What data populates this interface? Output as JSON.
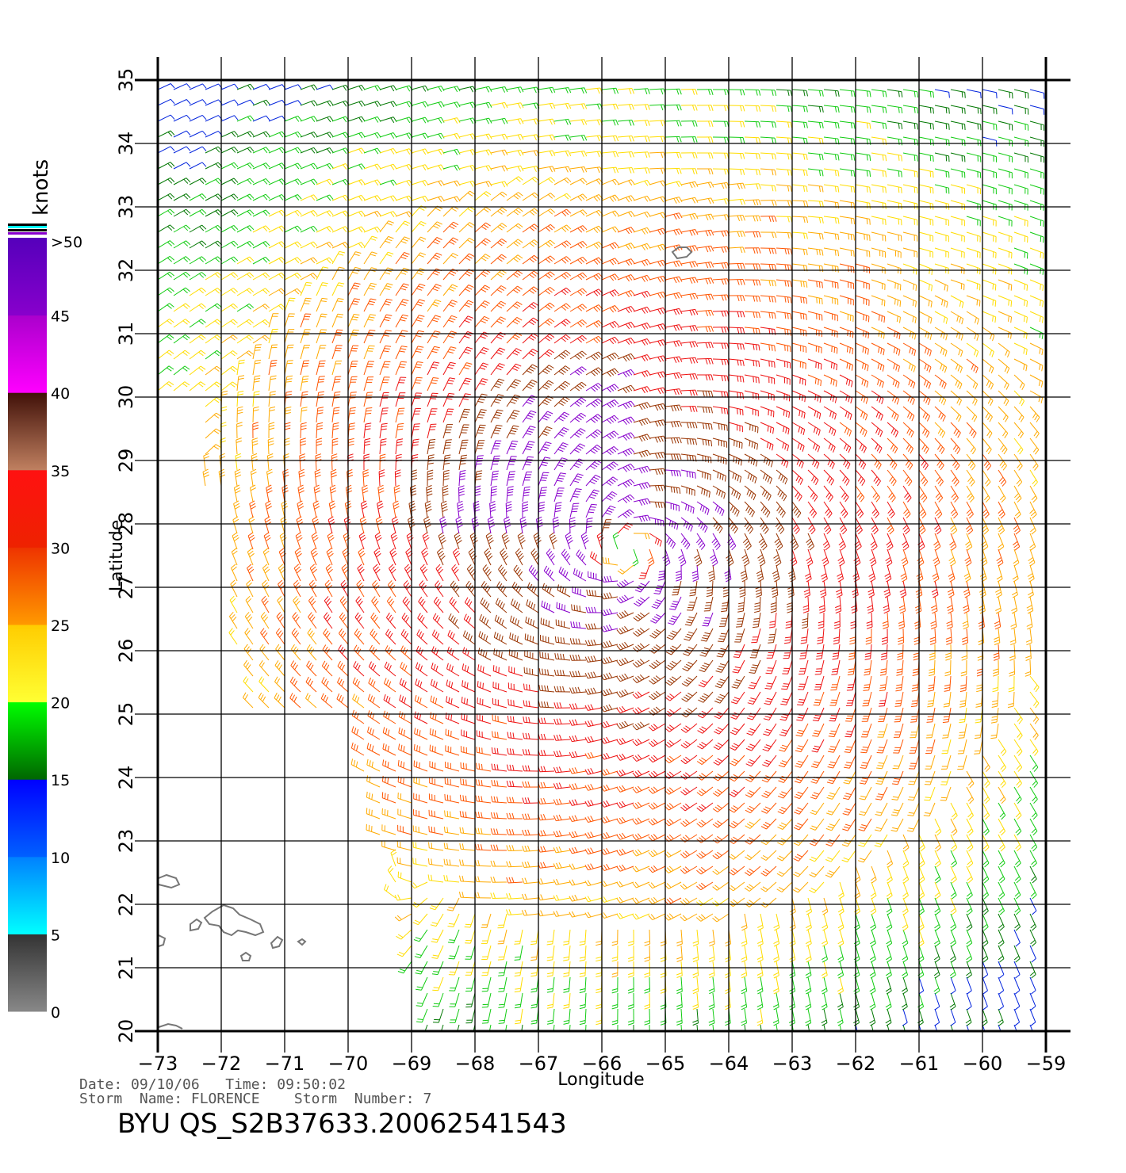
{
  "chart_data": {
    "type": "wind-barb-map",
    "xlabel": "Longitude",
    "ylabel": "Latitude",
    "xlim": [
      -73,
      -59
    ],
    "ylim": [
      20,
      35
    ],
    "x_ticks": [
      "−73",
      "−72",
      "−71",
      "−70",
      "−69",
      "−68",
      "−67",
      "−66",
      "−65",
      "−64",
      "−63",
      "−62",
      "−61",
      "−60",
      "−59"
    ],
    "y_ticks": [
      "20",
      "21",
      "22",
      "23",
      "24",
      "25",
      "26",
      "27",
      "28",
      "29",
      "30",
      "31",
      "32",
      "33",
      "34",
      "35"
    ],
    "grid": true,
    "legend_placement": "left",
    "color_scale": {
      "unit": "knots",
      "labels": [
        "0",
        "5",
        "10",
        "15",
        "20",
        "25",
        "30",
        "35",
        "40",
        "45",
        ">50"
      ],
      "bands": [
        {
          "from": 0,
          "to": 5,
          "top": "#333333",
          "bottom": "#888888"
        },
        {
          "from": 5,
          "to": 10,
          "top": "#0080ff",
          "bottom": "#00ffff"
        },
        {
          "from": 10,
          "to": 15,
          "top": "#0000ff",
          "bottom": "#0060ff"
        },
        {
          "from": 15,
          "to": 20,
          "top": "#00ff00",
          "bottom": "#006600"
        },
        {
          "from": 20,
          "to": 25,
          "top": "#ffcc00",
          "bottom": "#ffff33"
        },
        {
          "from": 25,
          "to": 30,
          "top": "#ee3300",
          "bottom": "#ff9900"
        },
        {
          "from": 30,
          "to": 35,
          "top": "#ff1111",
          "bottom": "#ee2200"
        },
        {
          "from": 35,
          "to": 40,
          "top": "#401008",
          "bottom": "#c08060"
        },
        {
          "from": 40,
          "to": 45,
          "top": "#aa00cc",
          "bottom": "#ff00ff"
        },
        {
          "from": 45,
          "to": 50,
          "top": "#5500bb",
          "bottom": "#8800cc"
        }
      ]
    },
    "storm_center": {
      "lon": -65.6,
      "lat": 27.6
    }
  },
  "info": {
    "date_line": "Date: 09/10/06   Time: 09:50:02",
    "storm_line": "Storm  Name: FLORENCE    Storm  Number: 7",
    "product_id": "BYU  QS_S2B37633.20062541543"
  }
}
